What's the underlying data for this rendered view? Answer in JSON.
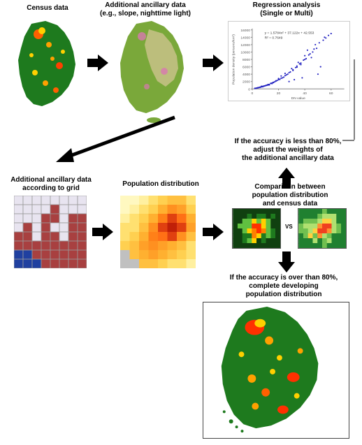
{
  "labels": {
    "census": "Census data",
    "ancillary_top": "Additional ancillary data\n(e.g., slope, nighttime light)",
    "regression": "Regression analysis\n(Single or Multi)",
    "ancillary_grid": "Additional ancillary data\naccording to grid",
    "pop_dist": "Population distribution",
    "comparison": "Comparison between\npopulation distribution\nand census data",
    "less80": "If the accuracy is less than 80%,\nadjust the weights of\nthe additional ancillary data",
    "over80": "If the accuracy is over than 80%,\ncomplete developing\npopulation distribution",
    "vs": "VS"
  },
  "scatter": {
    "xlabel": "DN value",
    "ylabel": "Population density (persons/km²)",
    "equation": "y = 1.5784x² + 37.122x + 42.553",
    "r2": "R² = 0.7649",
    "xlim": [
      0,
      70
    ],
    "ylim": [
      0,
      16000
    ],
    "xticks": [
      0,
      20,
      40,
      60
    ],
    "yticks": [
      0,
      2000,
      4000,
      6000,
      8000,
      10000,
      12000,
      14000,
      16000
    ],
    "points": [
      [
        3,
        200
      ],
      [
        5,
        400
      ],
      [
        4,
        300
      ],
      [
        8,
        600
      ],
      [
        6,
        500
      ],
      [
        10,
        900
      ],
      [
        7,
        700
      ],
      [
        12,
        1200
      ],
      [
        9,
        800
      ],
      [
        15,
        1600
      ],
      [
        11,
        1000
      ],
      [
        18,
        2200
      ],
      [
        14,
        1500
      ],
      [
        20,
        2800
      ],
      [
        16,
        1800
      ],
      [
        25,
        4200
      ],
      [
        22,
        3500
      ],
      [
        30,
        5500
      ],
      [
        28,
        2000
      ],
      [
        35,
        7200
      ],
      [
        32,
        2500
      ],
      [
        40,
        9000
      ],
      [
        38,
        3000
      ],
      [
        45,
        8500
      ],
      [
        42,
        10500
      ],
      [
        50,
        4000
      ],
      [
        48,
        12000
      ],
      [
        55,
        14000
      ],
      [
        52,
        6000
      ],
      [
        60,
        15000
      ],
      [
        13,
        1100
      ],
      [
        17,
        1900
      ],
      [
        21,
        2600
      ],
      [
        24,
        3200
      ],
      [
        27,
        4000
      ],
      [
        5,
        350
      ],
      [
        8,
        700
      ],
      [
        33,
        5800
      ],
      [
        36,
        6800
      ],
      [
        39,
        7800
      ],
      [
        43,
        9200
      ],
      [
        46,
        10000
      ],
      [
        49,
        11000
      ],
      [
        2,
        150
      ],
      [
        4,
        280
      ],
      [
        6,
        420
      ],
      [
        10,
        850
      ],
      [
        12,
        1050
      ],
      [
        19,
        2300
      ],
      [
        23,
        3000
      ],
      [
        26,
        3800
      ],
      [
        29,
        4600
      ],
      [
        31,
        5200
      ],
      [
        34,
        6200
      ],
      [
        37,
        7000
      ],
      [
        41,
        8200
      ],
      [
        44,
        9500
      ],
      [
        47,
        10800
      ],
      [
        51,
        12500
      ],
      [
        54,
        13200
      ],
      [
        3,
        180
      ],
      [
        7,
        550
      ],
      [
        11,
        980
      ],
      [
        15,
        1450
      ],
      [
        58,
        14500
      ],
      [
        18,
        2100
      ],
      [
        22,
        2900
      ],
      [
        25,
        3600
      ],
      [
        28,
        4400
      ],
      [
        31,
        5000
      ],
      [
        34,
        5900
      ],
      [
        9,
        750
      ],
      [
        13,
        1200
      ],
      [
        16,
        1700
      ],
      [
        20,
        2500
      ],
      [
        37,
        6600
      ],
      [
        40,
        8000
      ],
      [
        56,
        13800
      ]
    ],
    "point_color": "#2020c0",
    "axis_color": "#808080"
  },
  "ancillary_grid": {
    "size": 8,
    "cells": [
      [
        "#e8e4f0",
        "#e8e4f0",
        "#e8e4f0",
        "#e8e4f0",
        "#e8e4f0",
        "#e8e4f0",
        "#e8e4f0",
        "#e8e4f0"
      ],
      [
        "#e8e4f0",
        "#e8e4f0",
        "#e8e4f0",
        "#e8e4f0",
        "#a84040",
        "#e8e4f0",
        "#e8e4f0",
        "#e8e4f0"
      ],
      [
        "#e8e4f0",
        "#e8e4f0",
        "#e8e4f0",
        "#a84040",
        "#a84040",
        "#e8e4f0",
        "#a84040",
        "#a84040"
      ],
      [
        "#e8e4f0",
        "#a84040",
        "#e8e4f0",
        "#a84040",
        "#e8e4f0",
        "#e8e4f0",
        "#a84040",
        "#a84040"
      ],
      [
        "#a84040",
        "#a84040",
        "#e8e4f0",
        "#a84040",
        "#a84040",
        "#e8e4f0",
        "#a84040",
        "#a84040"
      ],
      [
        "#a84040",
        "#a84040",
        "#a84040",
        "#a84040",
        "#a84040",
        "#a84040",
        "#a84040",
        "#a84040"
      ],
      [
        "#2040a0",
        "#2040a0",
        "#a84040",
        "#a84040",
        "#a84040",
        "#a84040",
        "#a84040",
        "#a84040"
      ],
      [
        "#2040a0",
        "#2040a0",
        "#2040a0",
        "#a84040",
        "#a84040",
        "#a84040",
        "#a84040",
        "#a84040"
      ]
    ]
  },
  "pop_grid": {
    "size": 8,
    "cells": [
      [
        "#fff8c0",
        "#fff8c0",
        "#fff0a0",
        "#ffe070",
        "#ffd050",
        "#ffc040",
        "#ffc040",
        "#ffe070"
      ],
      [
        "#fff8c0",
        "#fff0a0",
        "#ffe070",
        "#ffd050",
        "#ffb030",
        "#ff9020",
        "#ffa028",
        "#ffd050"
      ],
      [
        "#fff0a0",
        "#ffe070",
        "#ffd050",
        "#ffb030",
        "#ff8018",
        "#e04010",
        "#ff7016",
        "#ffb030"
      ],
      [
        "#ffe070",
        "#ffe070",
        "#ffc040",
        "#ff9020",
        "#e04010",
        "#c02008",
        "#e04010",
        "#ffa028"
      ],
      [
        "#ffe070",
        "#ffd050",
        "#ffb030",
        "#ff8018",
        "#ff7016",
        "#e04010",
        "#ff9020",
        "#ffc040"
      ],
      [
        "#ffd050",
        "#ffc040",
        "#ffa028",
        "#ff9020",
        "#ffa028",
        "#ffb030",
        "#ffc040",
        "#ffe070"
      ],
      [
        "#c0c0c0",
        "#ffc040",
        "#ffb030",
        "#ffa028",
        "#ffb030",
        "#ffc040",
        "#ffd050",
        "#ffe070"
      ],
      [
        "#c0c0c0",
        "#c0c0c0",
        "#ffc040",
        "#ffc040",
        "#ffd050",
        "#ffe070",
        "#ffe070",
        "#fff0a0"
      ]
    ]
  },
  "korea_colors": {
    "land": "#1e7a1e",
    "hot1": "#ff4000",
    "hot2": "#ffa000",
    "hot3": "#ffe000",
    "sea": "#ffffff",
    "highland": "#d8c898"
  },
  "compare_left_palette": [
    "#104010",
    "#1e7a1e",
    "#60c040",
    "#ffd000",
    "#ff8000",
    "#ff3000"
  ],
  "compare_right_palette": [
    "#208030",
    "#70c050",
    "#b0e070",
    "#ffd040",
    "#ff9030",
    "#f04020"
  ]
}
